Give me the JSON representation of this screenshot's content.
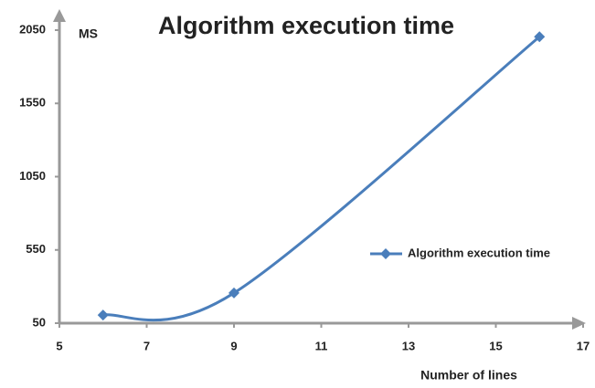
{
  "chart_data": {
    "type": "line",
    "title": "Algorithm execution time",
    "y_label": "MS",
    "x_label": "Number of lines",
    "x": [
      6,
      9,
      16
    ],
    "series": [
      {
        "name": "Algorithm execution time",
        "color": "#4a7ebb",
        "values": [
          105,
          256,
          2005
        ]
      }
    ],
    "xlim": [
      5,
      17
    ],
    "xticks": [
      5,
      7,
      9,
      11,
      13,
      15,
      17
    ],
    "ylim": [
      50,
      2050
    ],
    "yticks": [
      50,
      550,
      1050,
      1550,
      2050
    ],
    "smooth": true,
    "legend": "right"
  }
}
